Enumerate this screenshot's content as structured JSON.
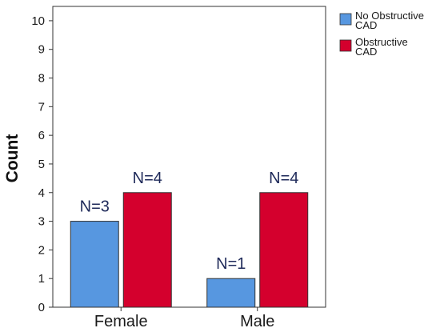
{
  "chart_data": {
    "type": "bar",
    "categories": [
      "Female",
      "Male"
    ],
    "series": [
      {
        "name": "No Obstructive CAD",
        "legend_lines": [
          "No Obstructive",
          "CAD"
        ],
        "color": "#5797e0",
        "values": [
          3,
          1
        ],
        "labels": [
          "N=3",
          "N=1"
        ]
      },
      {
        "name": "Obstructive CAD",
        "legend_lines": [
          "Obstructive",
          "CAD"
        ],
        "color": "#d4002d",
        "values": [
          4,
          4
        ],
        "labels": [
          "N=4",
          "N=4"
        ]
      }
    ],
    "title": "",
    "xlabel": "",
    "ylabel": "Count",
    "ylim": [
      0,
      10.5
    ],
    "yticks": [
      0,
      1,
      2,
      3,
      4,
      5,
      6,
      7,
      8,
      9,
      10
    ],
    "grid": false,
    "legend_position": "right"
  }
}
